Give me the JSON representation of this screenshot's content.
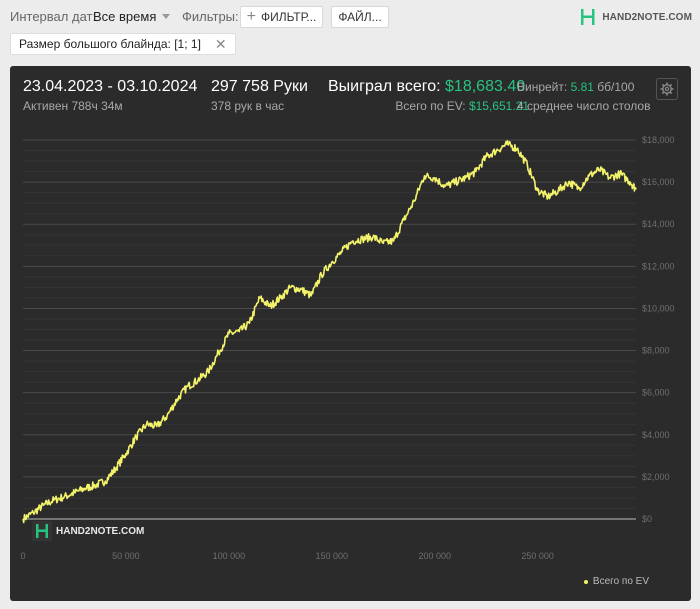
{
  "toolbar": {
    "interval_label": "Интервал дат:",
    "interval_value": "Все время",
    "filters_label": "Фильтры:",
    "filter_button": "ФИЛЬТР...",
    "file_button": "ФАЙЛ...",
    "brand": "HAND2NOTE.COM"
  },
  "active_filter": {
    "label": "Размер большого блайнда: [1; 1]",
    "close": "✕"
  },
  "stats": {
    "date_range": "23.04.2023 - 03.10.2024",
    "active_time": "Активен 788ч 34м",
    "hands": "297 758 Руки",
    "hands_per_hour": "378 рук в час",
    "won_label": "Выиграл всего:",
    "won_value": "$18,683.40",
    "ev_label": "Всего по EV:",
    "ev_value": "$15,651.21",
    "winrate_label": "Винрейт:",
    "winrate_value": "5.81",
    "winrate_unit": "бб/100",
    "tables_avg": "4 среднее число столов"
  },
  "colors": {
    "line": "#f3f36b",
    "green": "#27c481",
    "panel_bg": "#2b2b2b"
  },
  "watermark": "HAND2NOTE.COM",
  "legend_label": "Всего по EV",
  "chart_data": {
    "type": "line",
    "xlim": [
      0,
      297758
    ],
    "ylim": [
      0,
      18000
    ],
    "x_ticks": [
      {
        "v": 0,
        "label": "0"
      },
      {
        "v": 50000,
        "label": "50 000"
      },
      {
        "v": 100000,
        "label": "100 000"
      },
      {
        "v": 150000,
        "label": "150 000"
      },
      {
        "v": 200000,
        "label": "200 000"
      },
      {
        "v": 250000,
        "label": "250 000"
      }
    ],
    "y_ticks": [
      {
        "v": 0,
        "label": "$0"
      },
      {
        "v": 2000,
        "label": "$2,000"
      },
      {
        "v": 4000,
        "label": "$4,000"
      },
      {
        "v": 6000,
        "label": "$6,000"
      },
      {
        "v": 8000,
        "label": "$8,000"
      },
      {
        "v": 10000,
        "label": "$10,000"
      },
      {
        "v": 12000,
        "label": "$12,000"
      },
      {
        "v": 14000,
        "label": "$14,000"
      },
      {
        "v": 16000,
        "label": "$16,000"
      },
      {
        "v": 18000,
        "label": "$18,000"
      }
    ],
    "series": [
      {
        "name": "Всего по EV",
        "points": [
          [
            0,
            0
          ],
          [
            5000,
            300
          ],
          [
            10000,
            650
          ],
          [
            15000,
            900
          ],
          [
            20000,
            1050
          ],
          [
            25000,
            1250
          ],
          [
            30000,
            1450
          ],
          [
            35000,
            1600
          ],
          [
            40000,
            1800
          ],
          [
            45000,
            2400
          ],
          [
            50000,
            3100
          ],
          [
            55000,
            3900
          ],
          [
            60000,
            4500
          ],
          [
            65000,
            4400
          ],
          [
            70000,
            4900
          ],
          [
            75000,
            5700
          ],
          [
            80000,
            6300
          ],
          [
            85000,
            6600
          ],
          [
            90000,
            7000
          ],
          [
            95000,
            7900
          ],
          [
            100000,
            8800
          ],
          [
            105000,
            8900
          ],
          [
            110000,
            9300
          ],
          [
            115000,
            10500
          ],
          [
            120000,
            10100
          ],
          [
            125000,
            10500
          ],
          [
            130000,
            11000
          ],
          [
            135000,
            10900
          ],
          [
            140000,
            10600
          ],
          [
            145000,
            11600
          ],
          [
            150000,
            12200
          ],
          [
            155000,
            12700
          ],
          [
            160000,
            13200
          ],
          [
            165000,
            13300
          ],
          [
            170000,
            13400
          ],
          [
            175000,
            13100
          ],
          [
            180000,
            13200
          ],
          [
            185000,
            14200
          ],
          [
            190000,
            15100
          ],
          [
            195000,
            16300
          ],
          [
            200000,
            16200
          ],
          [
            205000,
            15800
          ],
          [
            210000,
            16000
          ],
          [
            215000,
            16200
          ],
          [
            220000,
            16500
          ],
          [
            225000,
            17200
          ],
          [
            230000,
            17500
          ],
          [
            235000,
            17800
          ],
          [
            240000,
            17600
          ],
          [
            245000,
            16800
          ],
          [
            250000,
            15600
          ],
          [
            255000,
            15300
          ],
          [
            260000,
            15600
          ],
          [
            265000,
            16000
          ],
          [
            270000,
            15700
          ],
          [
            275000,
            16300
          ],
          [
            280000,
            16600
          ],
          [
            285000,
            16200
          ],
          [
            290000,
            16400
          ],
          [
            295000,
            16000
          ],
          [
            297758,
            15651
          ]
        ]
      }
    ]
  }
}
